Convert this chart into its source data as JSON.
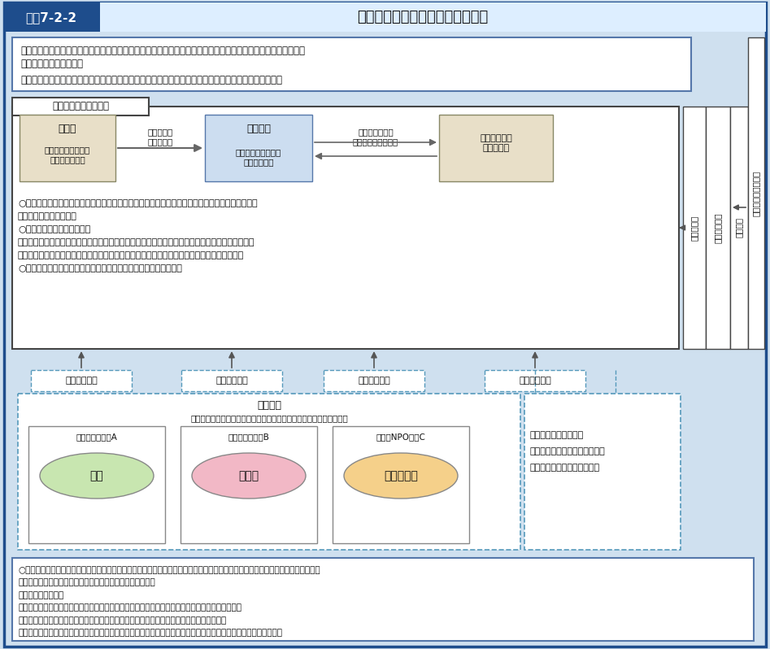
{
  "title_label": "図表7-2-2",
  "title_text": "地域医療連携推進法人制度の概要",
  "bg_color": "#cfe0ef",
  "header_blue": "#1e4d8c",
  "box_intro_text1": "・医療機関相互間の機能分担及び業務の連携を推進し、地域医療構想を達成するための一つの選択肢としての、",
  "box_intro_text2": "　新たな法人の認定制度",
  "box_intro_text3": "・複数の医療機関等が法人に参画することにより、地域において質が高く効率的な医療提供体制を確保",
  "main_box_label": "地域医療連携推進法人",
  "board_title": "理事会",
  "board_sub": "（理事３名以上及び\n監事１名以上）",
  "exec_text": "連携法人の\n業務を執行",
  "assembly_title": "社員総会",
  "assembly_sub": "（連携法人に関する\n事項の決議）",
  "opinion_text": "意見具申（社員\n総会は意見を尊重）",
  "council_title": "地域医療連携\n推進評議会",
  "bullet1": "○医療連携推進区域（原則地域医療構想区域内）を定め、区域内の病院等の連携推進の方針（医療",
  "bullet1b": "　連携推進方針）を決定",
  "bullet2": "○医療連携推進業務等の実施",
  "bullet3": "　診療科（病床）再編（病床特例の適用）、医師等の共同研修、医薬品等の共同購入、参加法人へ",
  "bullet3b": "　の資金貸付（基金造成を含む）、連携法人が議決権の全てを保有する関連事業者への出資等",
  "bullet4": "○参加法人の統括（参加法人の予算・事業計画等へ意見を述べる）",
  "sankai_label": "参画（社員）",
  "participating_title": "参加法人",
  "participating_sub": "（非営利で病院等の運営又は地域包括ケアに関する事業を行う法人）",
  "ex_a_label": "（例）医療法人A",
  "ex_a_inner": "病院",
  "ex_a_color": "#c8e6b0",
  "ex_b_label": "（例）公益法人B",
  "ex_b_inner": "診療所",
  "ex_b_color": "#f2b8c6",
  "ex_c_label": "（例）NPO法人C",
  "ex_c_inner": "介護事業所",
  "ex_c_color": "#f5d08a",
  "right_box_line1": "・区域内の個人開業医",
  "right_box_line2": "・区域内の医療従事者養成機関",
  "right_box_line3": "・関係自治体　　　　　　等",
  "governor_text": "都道府県知事",
  "council_right_text": "都道府県医療審議会",
  "nintei_text": "認定・監督",
  "ikenboshu_text": "意見具申",
  "bottom_text1": "○一般社団法人のうち、地域における医療機関等相互間の機能分担や業務の連携を推進することを主たる目的とする法人として、医",
  "bottom_text2": "　療法に定められた基準を満たすものを都道府県知事が認定",
  "bottom_text3": "　（認定基準の例）",
  "bottom_text4": "・病院、診療所、介護老人保健施設、介護医療院のいずれかを運営する法人が２以上参加すること",
  "bottom_text5": "・医師会、患者団体その他で構成される地域医療連携推進評議会を法人内に置いていること",
  "bottom_text6": "・参加法人が重要事項を決定するに当たっては、地域医療連携推進法人に意見を求めることを定款で定めていること"
}
